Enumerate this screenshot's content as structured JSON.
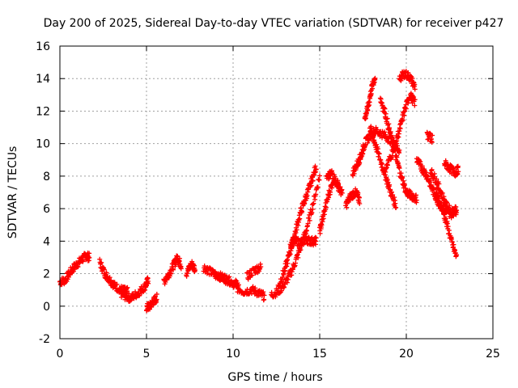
{
  "chart_data": {
    "type": "scatter",
    "title": "Day 200 of 2025, Sidereal Day-to-day VTEC variation (SDTVAR) for receiver p427",
    "xlabel": "GPS time / hours",
    "ylabel": "SDTVAR / TECUs",
    "xlim": [
      0,
      25
    ],
    "ylim": [
      -2,
      16
    ],
    "x_ticks": [
      0,
      5,
      10,
      15,
      20,
      25
    ],
    "y_ticks": [
      -2,
      0,
      2,
      4,
      6,
      8,
      10,
      12,
      14,
      16
    ],
    "grid": true,
    "marker": "+",
    "color": "#ff0000",
    "series": [
      {
        "name": "SDTVAR",
        "segments": [
          {
            "x": [
              0.0,
              0.3,
              0.6,
              0.9,
              1.2,
              1.5,
              1.7
            ],
            "y": [
              1.5,
              1.6,
              2.1,
              2.5,
              2.8,
              3.1,
              3.0
            ]
          },
          {
            "x": [
              2.3,
              2.6,
              2.9,
              3.2,
              3.6,
              3.9
            ],
            "y": [
              2.7,
              2.0,
              1.6,
              1.2,
              1.0,
              0.9
            ]
          },
          {
            "x": [
              3.5,
              3.8,
              4.1,
              4.5,
              4.9,
              5.1
            ],
            "y": [
              0.8,
              0.6,
              0.5,
              0.8,
              1.2,
              1.6
            ]
          },
          {
            "x": [
              5.0,
              5.2,
              5.4,
              5.6
            ],
            "y": [
              -0.1,
              0.0,
              0.3,
              0.5
            ]
          },
          {
            "x": [
              6.0,
              6.3,
              6.6,
              6.8,
              7.0
            ],
            "y": [
              1.5,
              2.0,
              2.6,
              3.0,
              2.5
            ]
          },
          {
            "x": [
              7.3,
              7.6,
              7.8
            ],
            "y": [
              2.0,
              2.6,
              2.3
            ]
          },
          {
            "x": [
              8.3,
              8.7,
              9.1,
              9.5,
              9.9,
              10.3
            ],
            "y": [
              2.4,
              2.1,
              1.9,
              1.7,
              1.5,
              1.3
            ]
          },
          {
            "x": [
              9.0,
              9.5,
              10.1,
              10.6,
              11.1,
              11.5,
              11.8
            ],
            "y": [
              1.8,
              1.7,
              1.2,
              0.9,
              1.0,
              0.8,
              0.6
            ]
          },
          {
            "x": [
              10.8,
              11.2,
              11.6
            ],
            "y": [
              1.8,
              2.2,
              2.4
            ]
          },
          {
            "x": [
              12.2,
              12.6,
              13.0,
              13.4,
              13.8,
              14.2,
              14.6,
              15.0
            ],
            "y": [
              0.7,
              0.9,
              1.4,
              2.2,
              3.3,
              4.6,
              6.2,
              8.0
            ]
          },
          {
            "x": [
              12.6,
              13.0,
              13.3,
              13.6,
              13.9,
              14.2,
              14.5,
              14.8
            ],
            "y": [
              1.2,
              2.3,
              3.4,
              4.6,
              5.8,
              6.7,
              7.6,
              8.6
            ]
          },
          {
            "x": [
              13.3,
              13.6,
              13.9,
              14.2,
              14.5,
              14.8
            ],
            "y": [
              3.8,
              4.0,
              3.9,
              4.1,
              4.0,
              4.0
            ]
          },
          {
            "x": [
              15.0,
              15.2,
              15.5,
              15.8,
              16.1
            ],
            "y": [
              4.6,
              5.5,
              6.8,
              7.8,
              7.5
            ]
          },
          {
            "x": [
              15.4,
              15.7,
              16.0,
              16.3
            ],
            "y": [
              7.8,
              8.2,
              7.5,
              6.9
            ]
          },
          {
            "x": [
              16.5,
              16.8,
              17.1,
              17.3
            ],
            "y": [
              6.2,
              6.8,
              7.0,
              6.5
            ]
          },
          {
            "x": [
              16.9,
              17.2,
              17.4,
              17.6,
              17.9,
              18.2,
              18.6,
              19.0,
              19.3,
              19.6
            ],
            "y": [
              8.2,
              8.8,
              9.3,
              10.0,
              10.5,
              10.8,
              10.6,
              10.3,
              10.0,
              9.6
            ]
          },
          {
            "x": [
              17.6,
              17.8,
              18.0,
              18.2
            ],
            "y": [
              11.5,
              12.3,
              13.4,
              14.1
            ]
          },
          {
            "x": [
              17.9,
              18.2,
              18.5,
              18.8,
              19.1,
              19.4
            ],
            "y": [
              11.0,
              10.0,
              9.0,
              8.0,
              7.0,
              6.2
            ]
          },
          {
            "x": [
              18.5,
              18.8,
              19.1,
              19.4,
              19.7,
              20.0,
              20.3,
              20.6
            ],
            "y": [
              12.8,
              11.8,
              10.5,
              9.2,
              8.0,
              7.0,
              6.8,
              6.6
            ]
          },
          {
            "x": [
              18.8,
              19.2,
              19.6,
              19.9,
              20.2,
              20.5
            ],
            "y": [
              8.4,
              9.5,
              10.8,
              12.0,
              13.0,
              12.5
            ]
          },
          {
            "x": [
              19.6,
              19.9,
              20.2,
              20.5
            ],
            "y": [
              14.0,
              14.3,
              14.1,
              13.5
            ]
          },
          {
            "x": [
              20.6,
              20.9,
              21.2,
              21.5,
              21.8,
              22.1,
              22.5,
              22.9
            ],
            "y": [
              9.0,
              8.5,
              8.0,
              7.2,
              6.5,
              6.0,
              5.6,
              5.9
            ]
          },
          {
            "x": [
              21.4,
              21.7,
              22.0,
              22.3,
              22.6,
              22.9
            ],
            "y": [
              8.3,
              7.8,
              7.0,
              6.2,
              5.8,
              6.0
            ]
          },
          {
            "x": [
              21.7,
              22.0,
              22.3,
              22.6,
              22.9
            ],
            "y": [
              7.0,
              6.2,
              5.2,
              4.0,
              3.0
            ]
          },
          {
            "x": [
              22.2,
              22.5,
              22.8,
              23.0
            ],
            "y": [
              8.8,
              8.5,
              8.2,
              8.4
            ]
          },
          {
            "x": [
              21.2,
              21.5
            ],
            "y": [
              10.5,
              10.3
            ]
          }
        ]
      }
    ]
  }
}
